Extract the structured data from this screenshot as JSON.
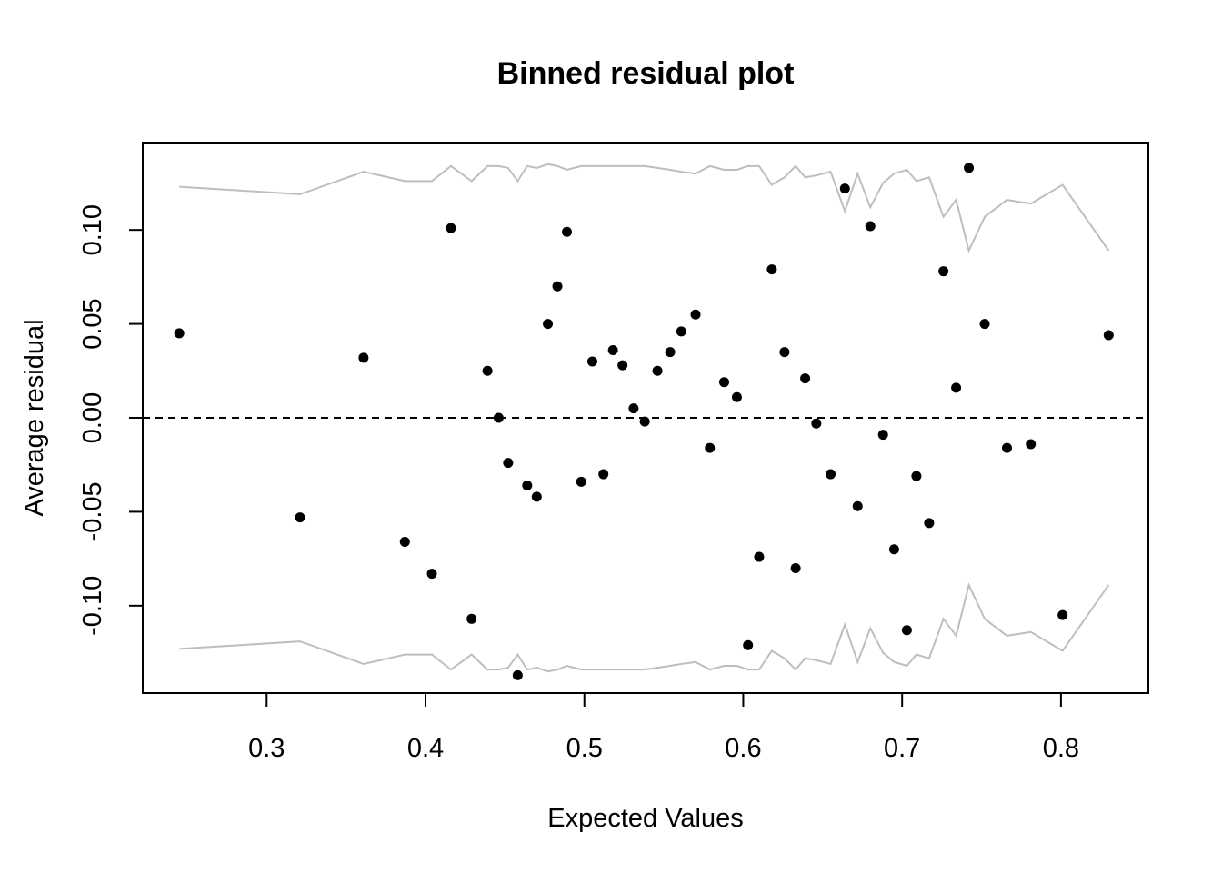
{
  "chart_data": {
    "type": "scatter",
    "title": "Binned residual plot",
    "xlabel": "Expected Values",
    "ylabel": "Average residual",
    "xlim": [
      0.222,
      0.855
    ],
    "ylim": [
      -0.1465,
      0.1465
    ],
    "x_ticks": [
      0.3,
      0.4,
      0.5,
      0.6,
      0.7,
      0.8
    ],
    "x_tick_labels": [
      "0.3",
      "0.4",
      "0.5",
      "0.6",
      "0.7",
      "0.8"
    ],
    "y_ticks": [
      -0.1,
      -0.05,
      0.0,
      0.05,
      0.1
    ],
    "y_tick_labels": [
      "-0.10",
      "-0.05",
      "0.00",
      "0.05",
      "0.10"
    ],
    "reference_line": {
      "y": 0,
      "style": "dashed",
      "color": "#000000"
    },
    "points_color": "#000000",
    "bound_color": "#bebebe",
    "points": [
      [
        0.245,
        0.045
      ],
      [
        0.321,
        -0.053
      ],
      [
        0.361,
        0.032
      ],
      [
        0.387,
        -0.066
      ],
      [
        0.404,
        -0.083
      ],
      [
        0.416,
        0.101
      ],
      [
        0.429,
        -0.107
      ],
      [
        0.439,
        0.025
      ],
      [
        0.446,
        0.0
      ],
      [
        0.452,
        -0.024
      ],
      [
        0.458,
        -0.137
      ],
      [
        0.464,
        -0.036
      ],
      [
        0.47,
        -0.042
      ],
      [
        0.477,
        0.05
      ],
      [
        0.483,
        0.07
      ],
      [
        0.489,
        0.099
      ],
      [
        0.498,
        -0.034
      ],
      [
        0.505,
        0.03
      ],
      [
        0.512,
        -0.03
      ],
      [
        0.518,
        0.036
      ],
      [
        0.524,
        0.028
      ],
      [
        0.531,
        0.005
      ],
      [
        0.538,
        -0.002
      ],
      [
        0.546,
        0.025
      ],
      [
        0.554,
        0.035
      ],
      [
        0.561,
        0.046
      ],
      [
        0.57,
        0.055
      ],
      [
        0.579,
        -0.016
      ],
      [
        0.588,
        0.019
      ],
      [
        0.596,
        0.011
      ],
      [
        0.603,
        -0.121
      ],
      [
        0.61,
        -0.074
      ],
      [
        0.618,
        0.079
      ],
      [
        0.626,
        0.035
      ],
      [
        0.633,
        -0.08
      ],
      [
        0.639,
        0.021
      ],
      [
        0.646,
        -0.003
      ],
      [
        0.655,
        -0.03
      ],
      [
        0.664,
        0.122
      ],
      [
        0.672,
        -0.047
      ],
      [
        0.68,
        0.102
      ],
      [
        0.688,
        -0.009
      ],
      [
        0.695,
        -0.07
      ],
      [
        0.703,
        -0.113
      ],
      [
        0.709,
        -0.031
      ],
      [
        0.717,
        -0.056
      ],
      [
        0.726,
        0.078
      ],
      [
        0.734,
        0.016
      ],
      [
        0.742,
        0.133
      ],
      [
        0.752,
        0.05
      ],
      [
        0.766,
        -0.016
      ],
      [
        0.781,
        -0.014
      ],
      [
        0.801,
        -0.105
      ],
      [
        0.83,
        0.044
      ]
    ],
    "upper_bound": [
      [
        0.245,
        0.123
      ],
      [
        0.321,
        0.119
      ],
      [
        0.361,
        0.131
      ],
      [
        0.387,
        0.126
      ],
      [
        0.404,
        0.126
      ],
      [
        0.416,
        0.134
      ],
      [
        0.429,
        0.126
      ],
      [
        0.439,
        0.134
      ],
      [
        0.446,
        0.134
      ],
      [
        0.452,
        0.133
      ],
      [
        0.458,
        0.126
      ],
      [
        0.464,
        0.134
      ],
      [
        0.47,
        0.133
      ],
      [
        0.477,
        0.135
      ],
      [
        0.483,
        0.134
      ],
      [
        0.489,
        0.132
      ],
      [
        0.498,
        0.134
      ],
      [
        0.505,
        0.134
      ],
      [
        0.512,
        0.134
      ],
      [
        0.518,
        0.134
      ],
      [
        0.524,
        0.134
      ],
      [
        0.531,
        0.134
      ],
      [
        0.538,
        0.134
      ],
      [
        0.546,
        0.133
      ],
      [
        0.554,
        0.132
      ],
      [
        0.561,
        0.131
      ],
      [
        0.57,
        0.13
      ],
      [
        0.579,
        0.134
      ],
      [
        0.588,
        0.132
      ],
      [
        0.596,
        0.132
      ],
      [
        0.603,
        0.134
      ],
      [
        0.61,
        0.134
      ],
      [
        0.618,
        0.124
      ],
      [
        0.626,
        0.128
      ],
      [
        0.633,
        0.134
      ],
      [
        0.639,
        0.128
      ],
      [
        0.646,
        0.129
      ],
      [
        0.655,
        0.131
      ],
      [
        0.664,
        0.11
      ],
      [
        0.672,
        0.13
      ],
      [
        0.68,
        0.112
      ],
      [
        0.688,
        0.125
      ],
      [
        0.695,
        0.13
      ],
      [
        0.703,
        0.132
      ],
      [
        0.709,
        0.126
      ],
      [
        0.717,
        0.128
      ],
      [
        0.726,
        0.107
      ],
      [
        0.734,
        0.116
      ],
      [
        0.742,
        0.089
      ],
      [
        0.752,
        0.107
      ],
      [
        0.766,
        0.116
      ],
      [
        0.781,
        0.114
      ],
      [
        0.801,
        0.124
      ],
      [
        0.83,
        0.089
      ]
    ],
    "lower_bound": [
      [
        0.245,
        -0.123
      ],
      [
        0.321,
        -0.119
      ],
      [
        0.361,
        -0.131
      ],
      [
        0.387,
        -0.126
      ],
      [
        0.404,
        -0.126
      ],
      [
        0.416,
        -0.134
      ],
      [
        0.429,
        -0.126
      ],
      [
        0.439,
        -0.134
      ],
      [
        0.446,
        -0.134
      ],
      [
        0.452,
        -0.133
      ],
      [
        0.458,
        -0.126
      ],
      [
        0.464,
        -0.134
      ],
      [
        0.47,
        -0.133
      ],
      [
        0.477,
        -0.135
      ],
      [
        0.483,
        -0.134
      ],
      [
        0.489,
        -0.132
      ],
      [
        0.498,
        -0.134
      ],
      [
        0.505,
        -0.134
      ],
      [
        0.512,
        -0.134
      ],
      [
        0.518,
        -0.134
      ],
      [
        0.524,
        -0.134
      ],
      [
        0.531,
        -0.134
      ],
      [
        0.538,
        -0.134
      ],
      [
        0.546,
        -0.133
      ],
      [
        0.554,
        -0.132
      ],
      [
        0.561,
        -0.131
      ],
      [
        0.57,
        -0.13
      ],
      [
        0.579,
        -0.134
      ],
      [
        0.588,
        -0.132
      ],
      [
        0.596,
        -0.132
      ],
      [
        0.603,
        -0.134
      ],
      [
        0.61,
        -0.134
      ],
      [
        0.618,
        -0.124
      ],
      [
        0.626,
        -0.128
      ],
      [
        0.633,
        -0.134
      ],
      [
        0.639,
        -0.128
      ],
      [
        0.646,
        -0.129
      ],
      [
        0.655,
        -0.131
      ],
      [
        0.664,
        -0.11
      ],
      [
        0.672,
        -0.13
      ],
      [
        0.68,
        -0.112
      ],
      [
        0.688,
        -0.125
      ],
      [
        0.695,
        -0.13
      ],
      [
        0.703,
        -0.132
      ],
      [
        0.709,
        -0.126
      ],
      [
        0.717,
        -0.128
      ],
      [
        0.726,
        -0.107
      ],
      [
        0.734,
        -0.116
      ],
      [
        0.742,
        -0.089
      ],
      [
        0.752,
        -0.107
      ],
      [
        0.766,
        -0.116
      ],
      [
        0.781,
        -0.114
      ],
      [
        0.801,
        -0.124
      ],
      [
        0.83,
        -0.089
      ]
    ]
  }
}
